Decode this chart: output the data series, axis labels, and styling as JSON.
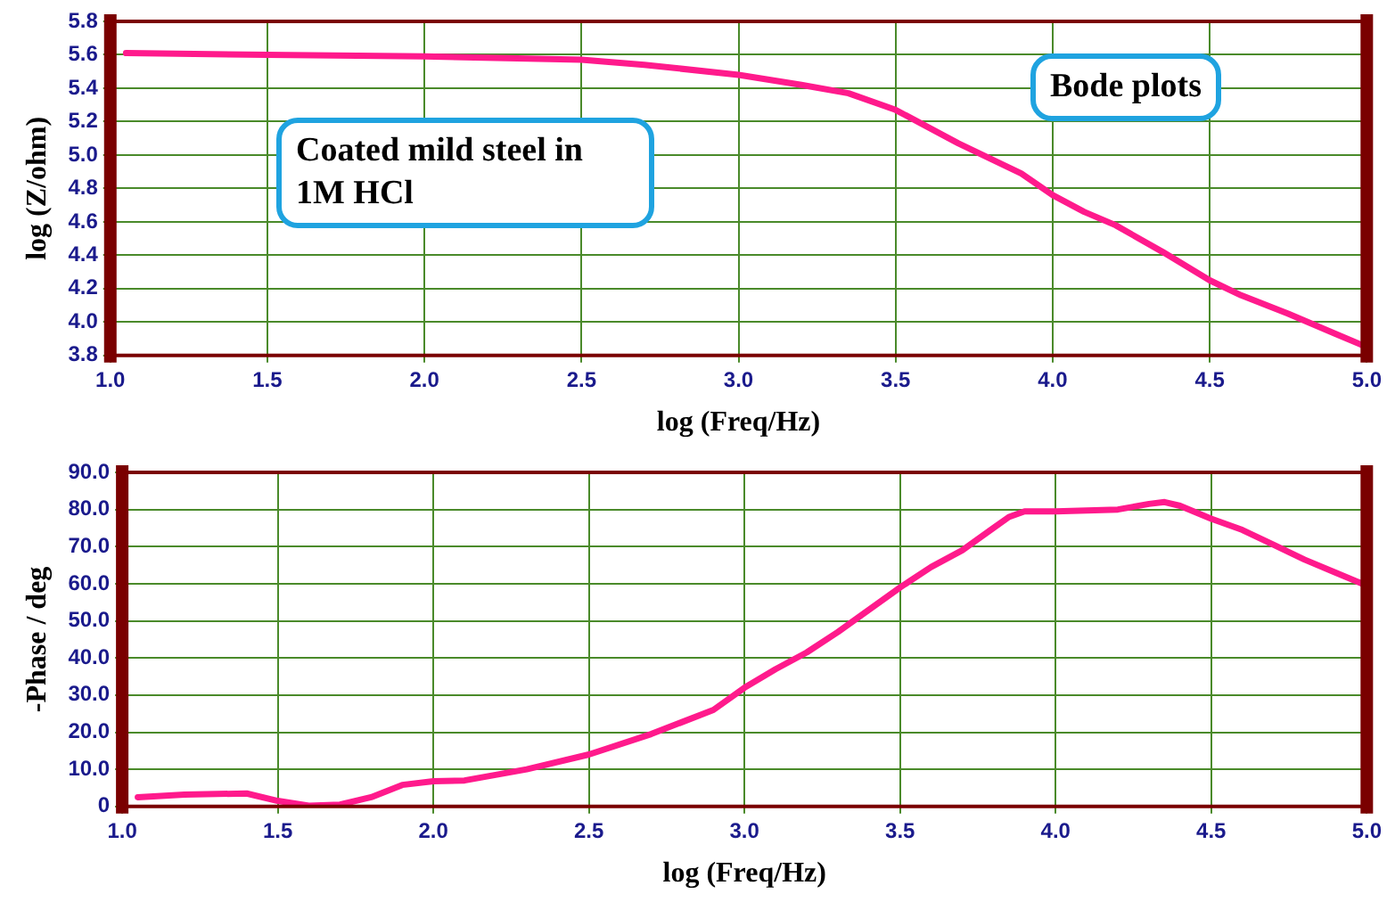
{
  "chart_data": [
    {
      "type": "line",
      "xlabel": "log (Freq/Hz)",
      "ylabel": "log (Z/ohm)",
      "annotations": [
        "Coated mild steel in 1M HCl",
        "Bode plots"
      ],
      "x": [
        1.05,
        1.5,
        2.0,
        2.5,
        2.7,
        3.0,
        3.2,
        3.35,
        3.5,
        3.7,
        3.9,
        4.0,
        4.1,
        4.2,
        4.35,
        4.5,
        4.6,
        4.75,
        4.9,
        5.0
      ],
      "series": [
        {
          "color": "#ff1a8c",
          "values": [
            5.61,
            5.6,
            5.59,
            5.57,
            5.54,
            5.48,
            5.42,
            5.37,
            5.27,
            5.07,
            4.89,
            4.76,
            4.66,
            4.58,
            4.42,
            4.25,
            4.16,
            4.05,
            3.93,
            3.85
          ]
        }
      ],
      "xlim": [
        1.0,
        5.0
      ],
      "xticks": [
        {
          "value": 1,
          "label": "1.0"
        },
        1.5,
        {
          "value": 2,
          "label": "2.0"
        },
        2.5,
        {
          "value": 3,
          "label": "3.0"
        },
        3.5,
        {
          "value": 4,
          "label": "4.0"
        },
        4.5,
        {
          "value": 5,
          "label": "5.0"
        }
      ],
      "ylim": [
        3.8,
        5.8
      ],
      "yticks": [
        3.8,
        {
          "value": 4,
          "label": "4.0"
        },
        4.2,
        4.4,
        4.6,
        4.8,
        {
          "value": 5,
          "label": "5.0"
        },
        5.2,
        5.4,
        5.6,
        5.8
      ],
      "grid": true,
      "legend": false,
      "marker": "none",
      "line_style": "solid"
    },
    {
      "type": "line",
      "xlabel": "log (Freq/Hz)",
      "ylabel": "-Phase / deg",
      "x": [
        1.05,
        1.2,
        1.4,
        1.5,
        1.6,
        1.7,
        1.8,
        1.9,
        2.0,
        2.1,
        2.3,
        2.5,
        2.7,
        2.9,
        3.0,
        3.1,
        3.2,
        3.3,
        3.4,
        3.5,
        3.6,
        3.7,
        3.8,
        3.85,
        3.9,
        4.0,
        4.2,
        4.3,
        4.35,
        4.4,
        4.5,
        4.6,
        4.7,
        4.8,
        4.9,
        5.0
      ],
      "series": [
        {
          "color": "#ff1a8c",
          "values": [
            2.5,
            3.2,
            3.5,
            1.5,
            0.2,
            0.5,
            2.5,
            5.8,
            6.8,
            7,
            10,
            14,
            19.5,
            26,
            32,
            37,
            41.5,
            47,
            53,
            59,
            64.5,
            69,
            75,
            78,
            79.5,
            79.5,
            80,
            81.5,
            82,
            81,
            77.5,
            74.5,
            70.5,
            66.5,
            63,
            59.5
          ]
        }
      ],
      "xlim": [
        1.0,
        5.0
      ],
      "xticks": [
        {
          "value": 1,
          "label": "1.0"
        },
        1.5,
        {
          "value": 2,
          "label": "2.0"
        },
        2.5,
        {
          "value": 3,
          "label": "3.0"
        },
        3.5,
        {
          "value": 4,
          "label": "4.0"
        },
        4.5,
        {
          "value": 5,
          "label": "5.0"
        }
      ],
      "ylim": [
        0,
        90
      ],
      "yticks": [
        0,
        {
          "value": 10,
          "label": "10.0"
        },
        {
          "value": 20,
          "label": "20.0"
        },
        {
          "value": 30,
          "label": "30.0"
        },
        {
          "value": 40,
          "label": "40.0"
        },
        {
          "value": 50,
          "label": "50.0"
        },
        {
          "value": 60,
          "label": "60.0"
        },
        {
          "value": 70,
          "label": "70.0"
        },
        {
          "value": 80,
          "label": "80.0"
        },
        {
          "value": 90,
          "label": "90.0"
        }
      ],
      "grid": true,
      "legend": false,
      "marker": "none",
      "line_style": "solid"
    }
  ]
}
